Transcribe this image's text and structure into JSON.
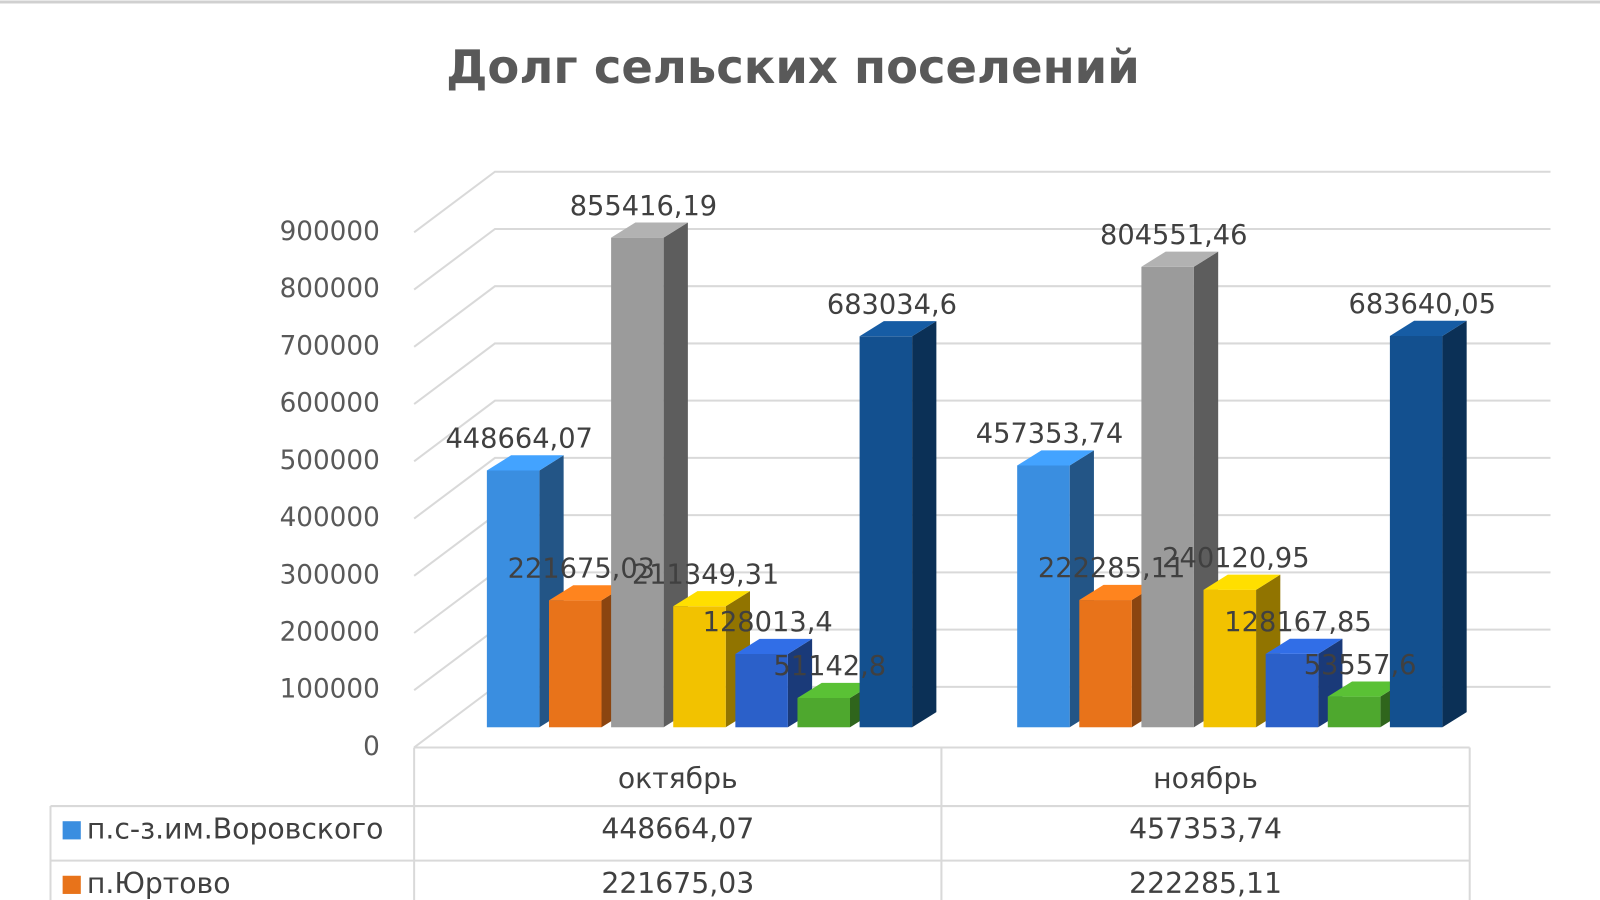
{
  "chart_data": {
    "type": "bar3d",
    "title": "Долг сельских поселений",
    "categories": [
      "октябрь",
      "ноябрь"
    ],
    "series": [
      {
        "name": "п.с-з.им.Воровского",
        "color": "#3a8ee0",
        "values": [
          448664.07,
          457353.74
        ],
        "value_labels": [
          "448664,07",
          "457353,74"
        ]
      },
      {
        "name": "п.Юртово",
        "color": "#e8731a",
        "values": [
          221675.03,
          222285.11
        ],
        "value_labels": [
          "221675,03",
          "222285,11"
        ]
      },
      {
        "color": "#9b9b9b",
        "values": [
          855416.19,
          804551.46
        ],
        "value_labels": [
          "855416,19",
          "804551,46"
        ]
      },
      {
        "color": "#f2c200",
        "values": [
          211349.31,
          240120.95
        ],
        "value_labels": [
          "211349,31",
          "240120,95"
        ]
      },
      {
        "color": "#2b60c9",
        "values": [
          128013.4,
          128167.85
        ],
        "value_labels": [
          "128013,4",
          "128167,85"
        ]
      },
      {
        "color": "#4ea82e",
        "values": [
          51142.8,
          53557.6
        ],
        "value_labels": [
          "51142,8",
          "53557,6"
        ]
      },
      {
        "color": "#13508f",
        "values": [
          683034.6,
          683640.05
        ],
        "value_labels": [
          "683034,6",
          "683640,05"
        ]
      }
    ],
    "ylim": [
      0,
      900000
    ],
    "yticks": [
      0,
      100000,
      200000,
      300000,
      400000,
      500000,
      600000,
      700000,
      800000,
      900000
    ],
    "grid": true,
    "data_table": true
  }
}
